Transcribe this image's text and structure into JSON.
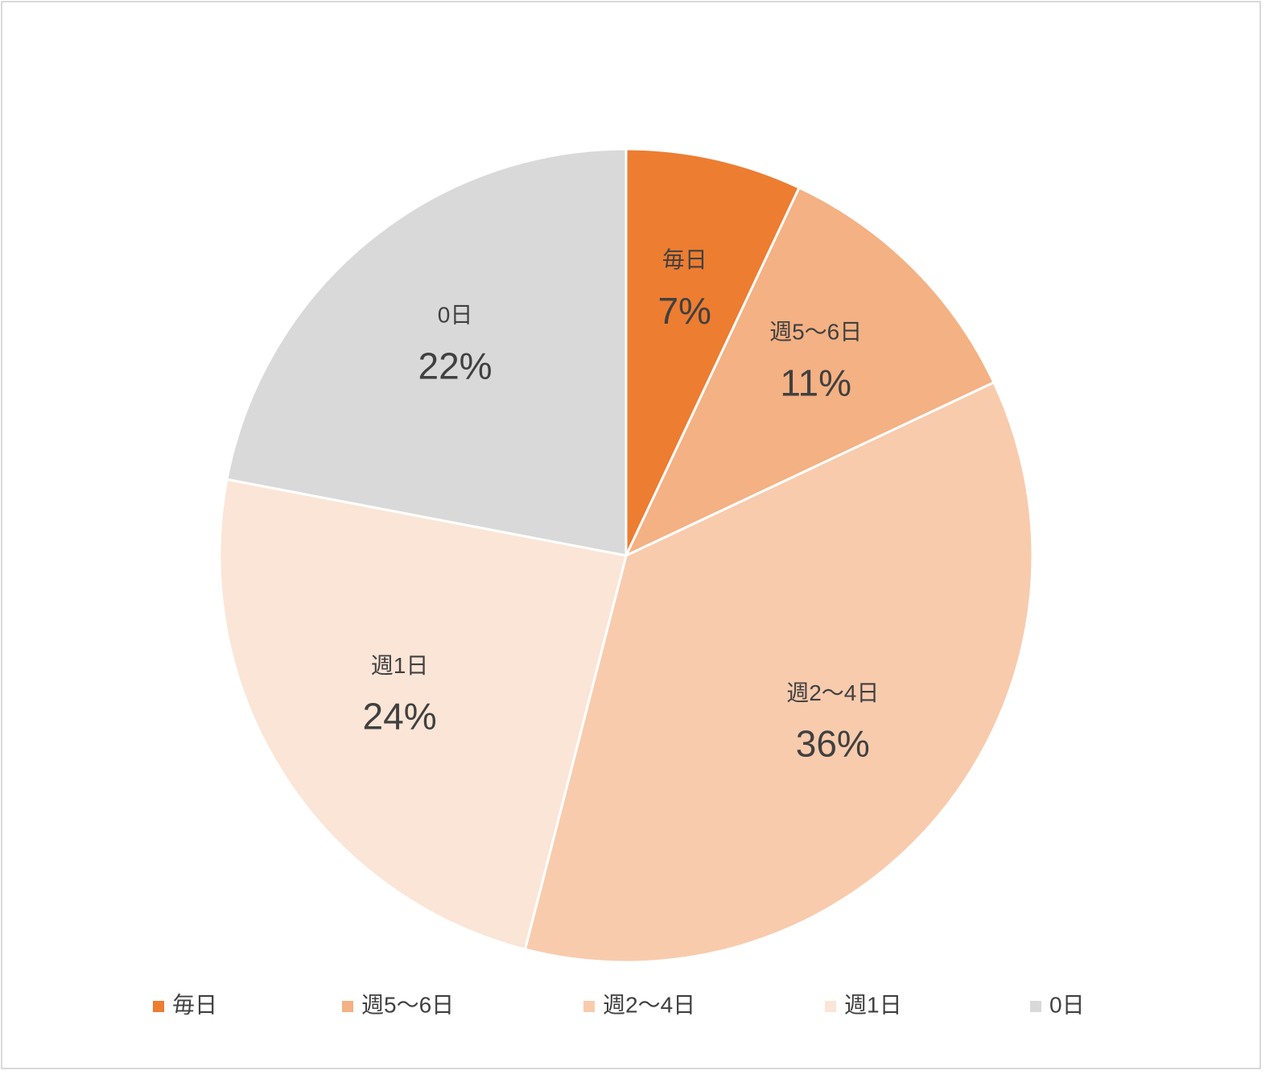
{
  "chart_data": {
    "type": "pie",
    "categories": [
      "毎日",
      "週5〜6日",
      "週2〜4日",
      "週1日",
      "0日"
    ],
    "values": [
      7,
      11,
      36,
      24,
      22
    ],
    "value_labels": [
      "7%",
      "11%",
      "36%",
      "24%",
      "22%"
    ],
    "colors": [
      "#ed7d31",
      "#f4b183",
      "#f8cbad",
      "#fbe5d6",
      "#d9d9d9"
    ],
    "legend": "bottom"
  }
}
